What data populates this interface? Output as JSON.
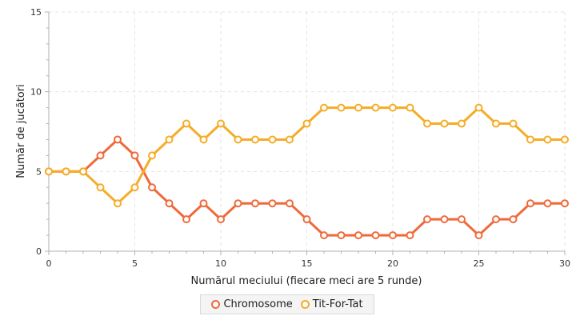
{
  "chart_data": {
    "type": "line",
    "xlabel": "Numărul meciului (fiecare meci are 5 runde)",
    "ylabel": "Număr de jucători",
    "xlim": [
      0,
      30
    ],
    "ylim": [
      0,
      15
    ],
    "x_ticks": [
      0,
      5,
      10,
      15,
      20,
      25,
      30
    ],
    "y_ticks": [
      0,
      5,
      10,
      15
    ],
    "grid": true,
    "legend_position": "bottom",
    "x": [
      0,
      1,
      2,
      3,
      4,
      5,
      6,
      7,
      8,
      9,
      10,
      11,
      12,
      13,
      14,
      15,
      16,
      17,
      18,
      19,
      20,
      21,
      22,
      23,
      24,
      25,
      26,
      27,
      28,
      29,
      30
    ],
    "series": [
      {
        "name": "Chromosome",
        "color": "#f0693a",
        "values": [
          5,
          5,
          5,
          6,
          7,
          6,
          4,
          3,
          2,
          3,
          2,
          3,
          3,
          3,
          3,
          2,
          1,
          1,
          1,
          1,
          1,
          1,
          2,
          2,
          2,
          1,
          2,
          2,
          3,
          3,
          3
        ]
      },
      {
        "name": "Tit-For-Tat",
        "color": "#f5ac28",
        "values": [
          5,
          5,
          5,
          4,
          3,
          4,
          6,
          7,
          8,
          7,
          8,
          7,
          7,
          7,
          7,
          8,
          9,
          9,
          9,
          9,
          9,
          9,
          8,
          8,
          8,
          9,
          8,
          8,
          7,
          7,
          7
        ]
      }
    ]
  }
}
